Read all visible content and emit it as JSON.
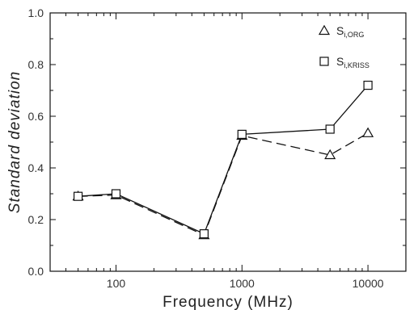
{
  "chart_data": {
    "type": "line",
    "xscale": "log",
    "xlim": [
      30,
      20000
    ],
    "ylim": [
      0.0,
      1.0
    ],
    "xlabel": "Frequency (MHz)",
    "ylabel": "Standard deviation",
    "xticks": [
      {
        "value": 100,
        "label": "100"
      },
      {
        "value": 1000,
        "label": "1000"
      },
      {
        "value": 10000,
        "label": "10000"
      }
    ],
    "yticks": [
      {
        "value": 0.0,
        "label": "0.0"
      },
      {
        "value": 0.2,
        "label": "0.2"
      },
      {
        "value": 0.4,
        "label": "0.4"
      },
      {
        "value": 0.6,
        "label": "0.6"
      },
      {
        "value": 0.8,
        "label": "0.8"
      },
      {
        "value": 1.0,
        "label": "1.0"
      }
    ],
    "grid": false,
    "legend": "top-right",
    "series": [
      {
        "name_main": "S",
        "name_sub": "i,ORG",
        "marker": "triangle",
        "line": "dashed",
        "x": [
          50,
          100,
          500,
          1000,
          5000,
          10000
        ],
        "y": [
          0.29,
          0.295,
          0.14,
          0.525,
          0.45,
          0.535
        ]
      },
      {
        "name_main": "S",
        "name_sub": "i,KRISS",
        "marker": "square",
        "line": "solid",
        "x": [
          50,
          100,
          500,
          1000,
          5000,
          10000
        ],
        "y": [
          0.29,
          0.3,
          0.145,
          0.53,
          0.55,
          0.72
        ]
      }
    ]
  }
}
